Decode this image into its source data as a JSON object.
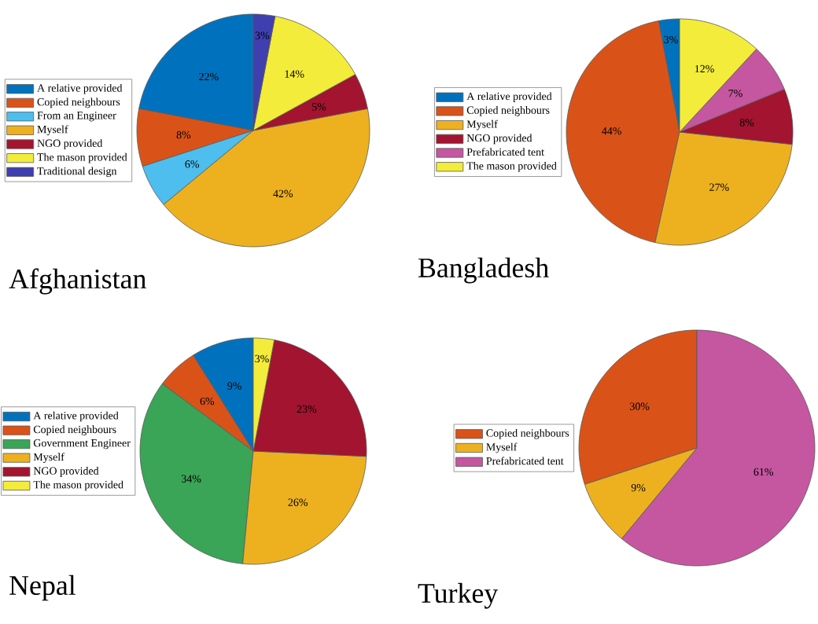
{
  "chart_data": [
    {
      "type": "pie",
      "title": "Afghanistan",
      "categories": [
        "A relative provided",
        "Copied neighbours",
        "From an Engineer",
        "Myself",
        "NGO provided",
        "The mason provided",
        "Traditional design"
      ],
      "values": [
        22,
        8,
        6,
        42,
        5,
        14,
        3
      ],
      "value_labels": [
        "22%",
        "8%",
        "6%",
        "42%",
        "5%",
        "14%",
        "3%"
      ],
      "colors": [
        "#0072bd",
        "#d95319",
        "#4dbeee",
        "#edb120",
        "#a2142f",
        "#f3ec3a",
        "#3f3fb0"
      ],
      "legend": "left"
    },
    {
      "type": "pie",
      "title": "Bangladesh",
      "categories": [
        "A relative provided",
        "Copied neighbours",
        "Myself",
        "NGO provided",
        "Prefabricated tent",
        "The mason provided"
      ],
      "values": [
        3,
        44,
        27,
        8,
        7,
        12
      ],
      "value_labels": [
        "3%",
        "44%",
        "27%",
        "8%",
        "7%",
        "12%"
      ],
      "colors": [
        "#0072bd",
        "#d95319",
        "#edb120",
        "#a2142f",
        "#c4579f",
        "#f3ec3a"
      ],
      "legend": "left"
    },
    {
      "type": "pie",
      "title": "Nepal",
      "categories": [
        "A relative provided",
        "Copied neighbours",
        "Government Engineer",
        "Myself",
        "NGO provided",
        "The mason provided"
      ],
      "values": [
        9,
        6,
        34,
        26,
        23,
        3
      ],
      "value_labels": [
        "9%",
        "6%",
        "34%",
        "26%",
        "23%",
        "3%"
      ],
      "colors": [
        "#0072bd",
        "#d95319",
        "#3aa457",
        "#edb120",
        "#a2142f",
        "#f3ec3a"
      ],
      "legend": "left"
    },
    {
      "type": "pie",
      "title": "Turkey",
      "categories": [
        "Copied neighbours",
        "Myself",
        "Prefabricated tent"
      ],
      "values": [
        30,
        9,
        61
      ],
      "value_labels": [
        "30%",
        "9%",
        "61%"
      ],
      "colors": [
        "#d95319",
        "#edb120",
        "#c4579f"
      ],
      "legend": "left"
    }
  ]
}
